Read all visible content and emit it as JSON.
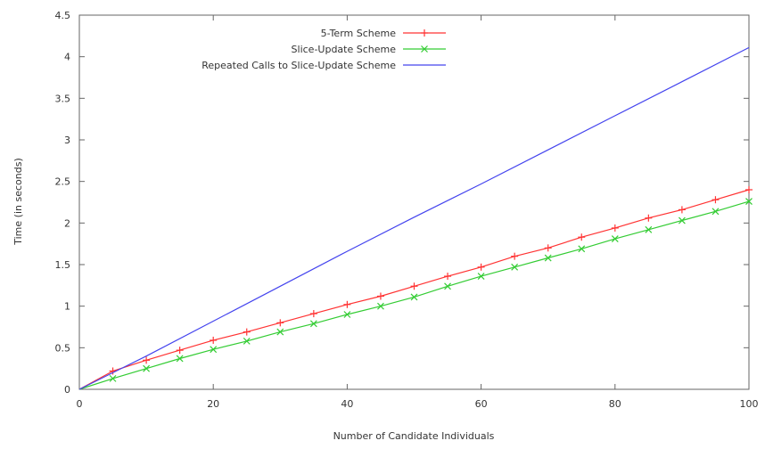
{
  "chart_data": {
    "type": "line",
    "xlabel": "Number of Candidate Individuals",
    "ylabel": "Time (in seconds)",
    "xlim": [
      0,
      100
    ],
    "ylim": [
      0,
      4.5
    ],
    "xticks": [
      0,
      20,
      40,
      60,
      80,
      100
    ],
    "yticks": [
      0,
      0.5,
      1,
      1.5,
      2,
      2.5,
      3,
      3.5,
      4,
      4.5
    ],
    "xtick_labels": [
      "0",
      "20",
      "40",
      "60",
      "80",
      "100"
    ],
    "ytick_labels": [
      "0",
      "0.5",
      "1",
      "1.5",
      "2",
      "2.5",
      "3",
      "3.5",
      "4",
      "4.5"
    ],
    "grid": false,
    "legend_position": "top-left",
    "series": [
      {
        "name": "5-Term Scheme",
        "color": "#ff3333",
        "marker": "plus",
        "x": [
          0,
          5,
          10,
          15,
          20,
          25,
          30,
          35,
          40,
          45,
          50,
          55,
          60,
          65,
          70,
          75,
          80,
          85,
          90,
          95,
          100
        ],
        "y": [
          0,
          0.22,
          0.35,
          0.47,
          0.59,
          0.69,
          0.8,
          0.91,
          1.02,
          1.12,
          1.24,
          1.36,
          1.47,
          1.6,
          1.7,
          1.83,
          1.94,
          2.06,
          2.16,
          2.28,
          2.4
        ]
      },
      {
        "name": "Slice-Update Scheme",
        "color": "#33cc33",
        "marker": "x",
        "x": [
          0,
          5,
          10,
          15,
          20,
          25,
          30,
          35,
          40,
          45,
          50,
          55,
          60,
          65,
          70,
          75,
          80,
          85,
          90,
          95,
          100
        ],
        "y": [
          0,
          0.13,
          0.25,
          0.37,
          0.48,
          0.58,
          0.69,
          0.79,
          0.9,
          1.0,
          1.11,
          1.24,
          1.36,
          1.47,
          1.58,
          1.69,
          1.81,
          1.92,
          2.03,
          2.14,
          2.26
        ]
      },
      {
        "name": "Repeated Calls to Slice-Update Scheme",
        "color": "#4444ee",
        "marker": "none",
        "x": [
          0,
          10,
          20,
          30,
          40,
          50,
          60,
          70,
          80,
          90,
          100
        ],
        "y": [
          0,
          0.4,
          0.82,
          1.24,
          1.66,
          2.07,
          2.47,
          2.88,
          3.29,
          3.7,
          4.11
        ]
      }
    ]
  }
}
